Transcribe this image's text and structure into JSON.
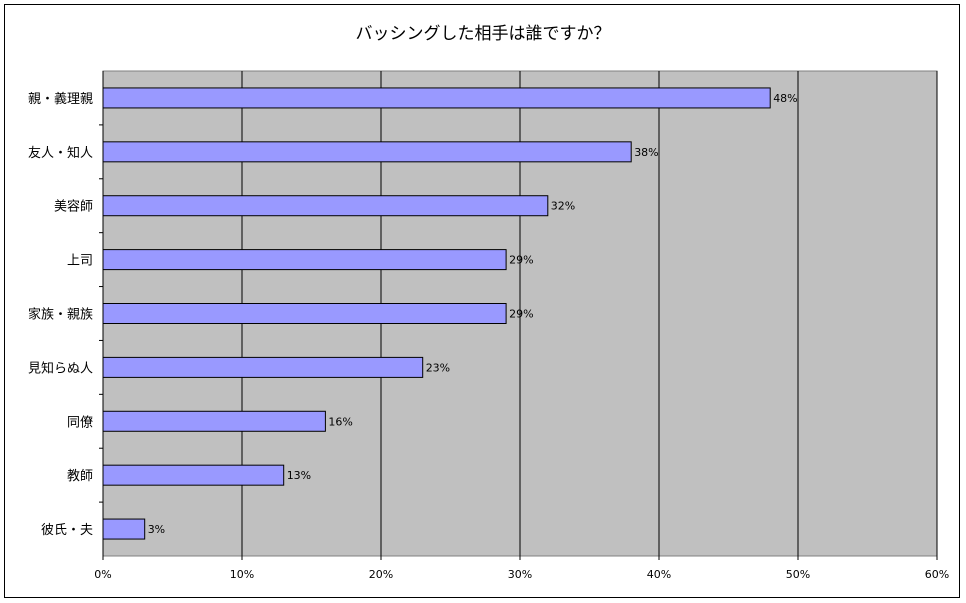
{
  "chart_data": {
    "type": "bar",
    "orientation": "horizontal",
    "title": "バッシングした相手は誰ですか？",
    "categories": [
      "親・義理親",
      "友人・知人",
      "美容師",
      "上司",
      "家族・親族",
      "見知らぬ人",
      "同僚",
      "教師",
      "彼氏・夫"
    ],
    "values": [
      48,
      38,
      32,
      29,
      29,
      23,
      16,
      13,
      3
    ],
    "data_labels": [
      "48%",
      "38%",
      "32%",
      "29%",
      "29%",
      "23%",
      "16%",
      "13%",
      "3%"
    ],
    "x_ticks": [
      "0%",
      "10%",
      "20%",
      "30%",
      "40%",
      "50%",
      "60%"
    ],
    "xlim": [
      0,
      60
    ],
    "grid": true,
    "legend": "none",
    "colors": {
      "bar_fill": "#9999ff",
      "bar_stroke": "#000000",
      "plot_bg": "#c0c0c0",
      "gridline": "#000000"
    }
  }
}
